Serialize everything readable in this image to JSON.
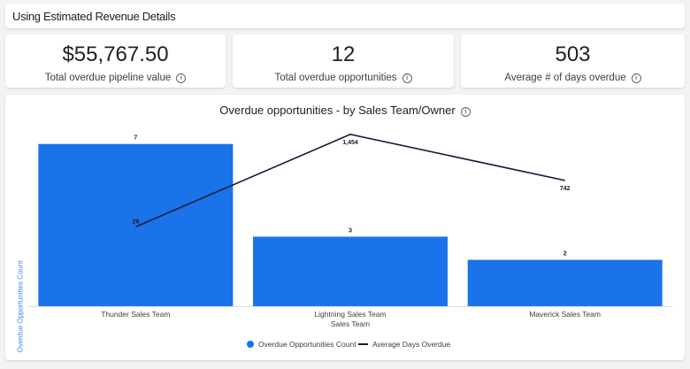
{
  "header": {
    "title": "Using Estimated Revenue Details"
  },
  "kpis": [
    {
      "value": "$55,767.50",
      "label": "Total overdue pipeline value",
      "info_icon": "info-icon"
    },
    {
      "value": "12",
      "label": "Total overdue opportunities",
      "info_icon": "info-icon"
    },
    {
      "value": "503",
      "label": "Average # of days overdue",
      "info_icon": "info-icon"
    }
  ],
  "chart": {
    "title": "Overdue opportunities - by Sales Team/Owner",
    "info_icon": "info-icon"
  },
  "chart_data": {
    "type": "bar",
    "title": "Overdue opportunities - by Sales Team/Owner",
    "categories": [
      "Thunder Sales Team",
      "Lightning Sales Team",
      "Maverick Sales Team"
    ],
    "series": [
      {
        "name": "Overdue Opportunities Count",
        "kind": "bar",
        "values": [
          7,
          3,
          2
        ],
        "labels": [
          "7",
          "3",
          "2"
        ],
        "color": "#1a73e8"
      },
      {
        "name": "Average Days Overdue",
        "kind": "line",
        "values": [
          26,
          1454,
          742
        ],
        "labels": [
          "26",
          "1,454",
          "742"
        ],
        "color": "#1a1a3a"
      }
    ],
    "xlabel": "Sales Team",
    "ylabel": "Overdue Opportunities Count",
    "ylim": [
      0,
      7.6
    ],
    "y2lim": [
      -1200,
      1520
    ],
    "grid": false,
    "legend_position": "bottom"
  }
}
